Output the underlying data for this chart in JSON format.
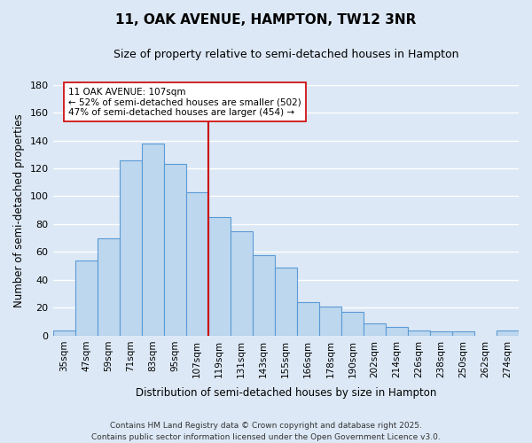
{
  "title": "11, OAK AVENUE, HAMPTON, TW12 3NR",
  "subtitle": "Size of property relative to semi-detached houses in Hampton",
  "xlabel": "Distribution of semi-detached houses by size in Hampton",
  "ylabel": "Number of semi-detached properties",
  "bin_labels": [
    "35sqm",
    "47sqm",
    "59sqm",
    "71sqm",
    "83sqm",
    "95sqm",
    "107sqm",
    "119sqm",
    "131sqm",
    "143sqm",
    "155sqm",
    "166sqm",
    "178sqm",
    "190sqm",
    "202sqm",
    "214sqm",
    "226sqm",
    "238sqm",
    "250sqm",
    "262sqm",
    "274sqm"
  ],
  "bar_heights": [
    4,
    54,
    70,
    126,
    138,
    123,
    103,
    85,
    75,
    58,
    49,
    24,
    21,
    17,
    9,
    6,
    4,
    3,
    3,
    0,
    4
  ],
  "bar_color": "#bdd7ee",
  "bar_edge_color": "#5b9bd5",
  "highlight_bin_index": 6,
  "highlight_color": "#cc0000",
  "annotation_title": "11 OAK AVENUE: 107sqm",
  "annotation_line1": "← 52% of semi-detached houses are smaller (502)",
  "annotation_line2": "47% of semi-detached houses are larger (454) →",
  "annotation_box_color": "#ffffff",
  "annotation_box_edge": "#cc0000",
  "ylim": [
    0,
    180
  ],
  "yticks": [
    0,
    20,
    40,
    60,
    80,
    100,
    120,
    140,
    160,
    180
  ],
  "footer_line1": "Contains HM Land Registry data © Crown copyright and database right 2025.",
  "footer_line2": "Contains public sector information licensed under the Open Government Licence v3.0.",
  "background_color": "#dce8f5",
  "grid_color": "#ffffff"
}
